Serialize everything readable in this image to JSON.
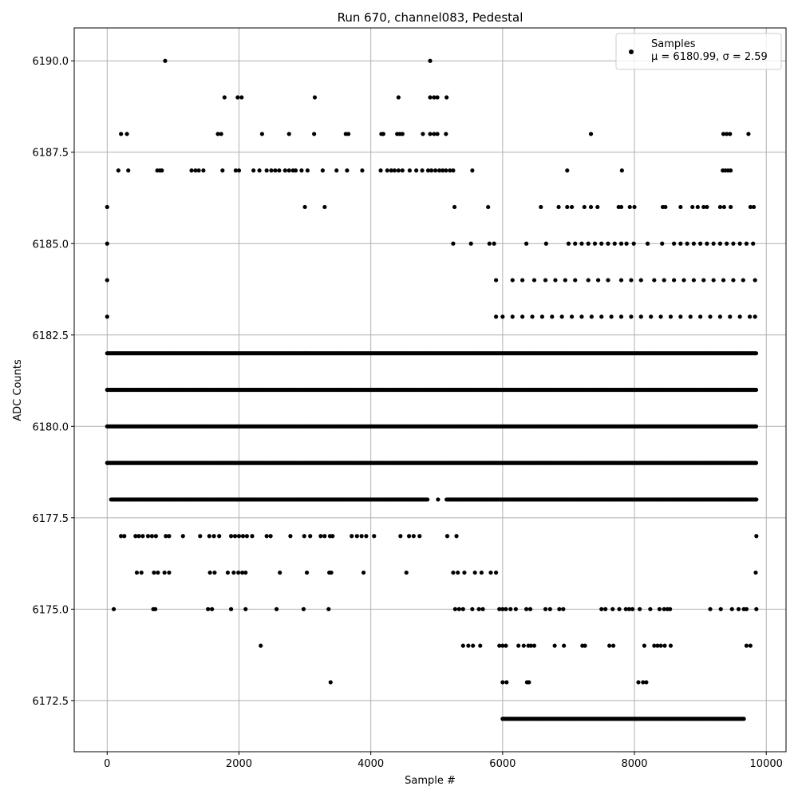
{
  "chart_data": {
    "type": "scatter",
    "title": "Run 670, channel083, Pedestal",
    "xlabel": "Sample #",
    "ylabel": "ADC Counts",
    "xlim": [
      -500,
      10300
    ],
    "ylim": [
      6171.1,
      6190.9
    ],
    "x_ticks": [
      0,
      2000,
      4000,
      6000,
      8000,
      10000
    ],
    "x_tick_labels": [
      "0",
      "2000",
      "4000",
      "6000",
      "8000",
      "10000"
    ],
    "y_ticks": [
      6172.5,
      6175.0,
      6177.5,
      6180.0,
      6182.5,
      6185.0,
      6187.5,
      6190.0
    ],
    "y_tick_labels": [
      "6172.5",
      "6175.0",
      "6177.5",
      "6180.0",
      "6182.5",
      "6185.0",
      "6187.5",
      "6190.0"
    ],
    "grid": true,
    "legend_position": "top-right",
    "marker_color": "#000000",
    "legend": {
      "label": "Samples",
      "stats_label": "μ = 6180.99, σ = 2.59"
    },
    "series": [
      {
        "name": "Samples",
        "description_level_bands": [
          {
            "y": 6190,
            "x": [
              880,
              4900
            ]
          },
          {
            "y": 6189,
            "x": [
              1780,
              1980,
              2040,
              3150,
              4420,
              4900,
              4960,
              5010,
              5150
            ]
          },
          {
            "y": 6188,
            "x": [
              210,
              300,
              1680,
              1730,
              2350,
              2760,
              3140,
              3620,
              3660,
              4160,
              4190,
              4400,
              4440,
              4480,
              4790,
              4900,
              4960,
              5010,
              5140,
              7340,
              9350,
              9400,
              9450,
              9730
            ]
          },
          {
            "y": 6187,
            "x": [
              170,
              320,
              760,
              800,
              830,
              1280,
              1340,
              1390,
              1460,
              1750,
              1950,
              2000,
              2220,
              2310,
              2420,
              2490,
              2550,
              2610,
              2700,
              2760,
              2820,
              2860,
              2950,
              3040,
              3270,
              3480,
              3640,
              3870,
              4150,
              4250,
              4310,
              4360,
              4420,
              4480,
              4590,
              4690,
              4780,
              4870,
              4920,
              4980,
              5040,
              5090,
              5140,
              5200,
              5250,
              5540,
              6980,
              7810,
              9340,
              9380,
              9420,
              9460
            ]
          },
          {
            "y": 6186,
            "x": [
              0,
              3000,
              3300,
              5270,
              5780,
              6580,
              6850,
              6980,
              7050,
              7240,
              7340,
              7440,
              7760,
              7800,
              7930,
              8000,
              8430,
              8470,
              8700,
              8880,
              8960,
              9050,
              9100,
              9300,
              9360,
              9460,
              9760,
              9810
            ]
          },
          {
            "y": 6185,
            "x": [
              0,
              5250,
              5520,
              5800,
              5870,
              6360,
              6660,
              7000,
              7100,
              7200,
              7300,
              7400,
              7500,
              7600,
              7700,
              7800,
              7880,
              7990,
              8200,
              8420,
              8600,
              8700,
              8800,
              8900,
              9000,
              9100,
              9200,
              9300,
              9400,
              9500,
              9600,
              9700,
              9800
            ]
          },
          {
            "y": 6184,
            "x": [
              0,
              5900,
              6150,
              6300,
              6480,
              6650,
              6800,
              6950,
              7100,
              7300,
              7450,
              7600,
              7800,
              7950,
              8100,
              8300,
              8450,
              8600,
              8750,
              8900,
              9050,
              9200,
              9350,
              9500,
              9650,
              9830
            ]
          },
          {
            "y": 6183,
            "x": [
              0,
              5900,
              6000,
              6150,
              6300,
              6450,
              6600,
              6750,
              6900,
              7050,
              7200,
              7350,
              7500,
              7650,
              7800,
              7950,
              8100,
              8250,
              8400,
              8550,
              8700,
              8850,
              9000,
              9150,
              9300,
              9450,
              9600,
              9750,
              9830
            ]
          },
          {
            "y": 6182,
            "x": [
              0,
              9850
            ]
          },
          {
            "y": 6181,
            "x": [
              0,
              9850
            ]
          },
          {
            "y": 6180,
            "x": [
              0,
              9850
            ]
          },
          {
            "y": 6179,
            "x": [
              0,
              9850
            ]
          },
          {
            "y": 6178,
            "x": [
              60,
              4860,
              5020,
              5150,
              9850
            ]
          },
          {
            "y": 6177,
            "x": [
              210,
              260,
              430,
              480,
              540,
              620,
              680,
              740,
              890,
              940,
              1150,
              1410,
              1550,
              1620,
              1700,
              1880,
              1940,
              2000,
              2060,
              2120,
              2200,
              2420,
              2480,
              2780,
              2990,
              3080,
              3240,
              3300,
              3380,
              3420,
              3710,
              3790,
              3860,
              3930,
              4050,
              4450,
              4580,
              4650,
              4740,
              5160,
              5300,
              9850
            ]
          },
          {
            "y": 6176,
            "x": [
              450,
              520,
              710,
              770,
              870,
              940,
              1560,
              1630,
              1830,
              1920,
              1990,
              2050,
              2100,
              2620,
              3030,
              3370,
              3400,
              3890,
              4540,
              5250,
              5320,
              5420,
              5580,
              5680,
              5820,
              5900,
              9840
            ]
          },
          {
            "y": 6175,
            "x": [
              100,
              700,
              730,
              1530,
              1590,
              1880,
              2100,
              2570,
              2980,
              3360,
              5280,
              5340,
              5400,
              5540,
              5640,
              5700,
              5950,
              6000,
              6050,
              6120,
              6200,
              6360,
              6420,
              6650,
              6720,
              6860,
              6920,
              7500,
              7560,
              7670,
              7770,
              7870,
              7920,
              7970,
              8080,
              8240,
              8380,
              8450,
              8500,
              8540,
              9150,
              9310,
              9480,
              9580,
              9660,
              9700,
              9850
            ]
          },
          {
            "y": 6174,
            "x": [
              2330,
              5400,
              5480,
              5550,
              5660,
              5950,
              6000,
              6050,
              6240,
              6320,
              6390,
              6430,
              6480,
              6790,
              6930,
              7210,
              7250,
              7620,
              7680,
              8150,
              8300,
              8350,
              8400,
              8460,
              8550,
              9700,
              9760
            ]
          },
          {
            "y": 6173,
            "x": [
              3390,
              6000,
              6060,
              6370,
              6400,
              8060,
              8130,
              8180
            ]
          },
          {
            "y": 6172,
            "x": [
              6000,
              8300,
              9660
            ]
          }
        ]
      }
    ]
  }
}
